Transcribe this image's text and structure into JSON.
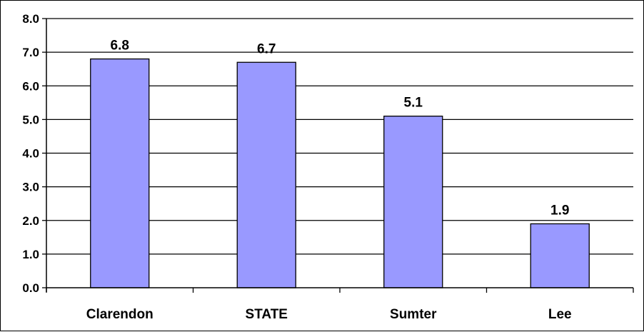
{
  "chart_data": {
    "type": "bar",
    "categories": [
      "Clarendon",
      "STATE",
      "Sumter",
      "Lee"
    ],
    "values": [
      6.8,
      6.7,
      5.1,
      1.9
    ],
    "value_labels": [
      "6.8",
      "6.7",
      "5.1",
      "1.9"
    ],
    "y_ticks": [
      "0.0",
      "1.0",
      "2.0",
      "3.0",
      "4.0",
      "5.0",
      "6.0",
      "7.0",
      "8.0"
    ],
    "ylim": [
      0,
      8
    ],
    "grid": true,
    "bar_color": "#9999ff",
    "title": "",
    "xlabel": "",
    "ylabel": ""
  }
}
